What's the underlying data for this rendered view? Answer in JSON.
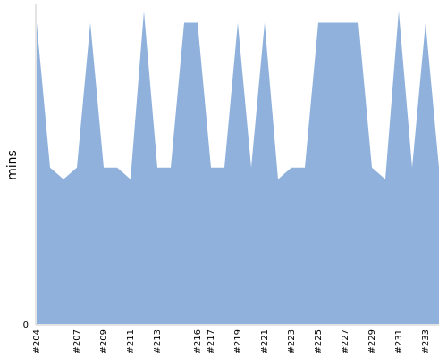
{
  "chart_data": {
    "type": "area",
    "ylabel": "mins",
    "y_tick_labels": [
      "0"
    ],
    "ylim": [
      0,
      11
    ],
    "x_tick_labels": [
      "#204",
      "#207",
      "#209",
      "#211",
      "#213",
      "#216",
      "#217",
      "#219",
      "#221",
      "#223",
      "#225",
      "#227",
      "#229",
      "#231",
      "#233"
    ],
    "x": [
      "#204",
      "#205",
      "#206",
      "#207",
      "#208",
      "#209",
      "#210",
      "#211",
      "#212",
      "#213",
      "#214",
      "#215",
      "#216",
      "#217",
      "#218",
      "#219",
      "#220",
      "#221",
      "#222",
      "#223",
      "#224",
      "#225",
      "#226",
      "#227",
      "#228",
      "#229",
      "#230",
      "#231",
      "#232",
      "#233",
      "#234"
    ],
    "values": [
      10.4,
      5.4,
      5.0,
      5.4,
      10.4,
      5.4,
      5.4,
      5.0,
      10.8,
      5.4,
      5.4,
      10.4,
      10.4,
      5.4,
      5.4,
      10.4,
      5.4,
      10.4,
      5.0,
      5.4,
      5.4,
      10.4,
      10.4,
      10.4,
      10.4,
      5.4,
      5.0,
      10.8,
      5.4,
      10.4,
      5.4
    ],
    "fill_color": "#8fb1dc",
    "axis_color": "#c8c8c8",
    "grid": false
  }
}
